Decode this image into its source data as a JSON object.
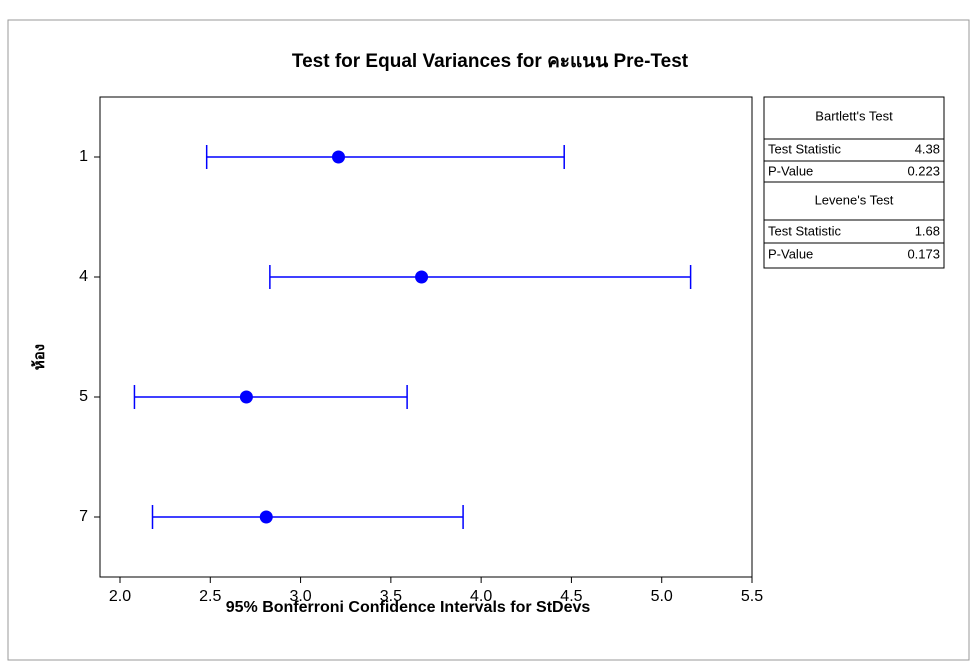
{
  "chart_data": {
    "type": "interval",
    "title": "Test for Equal Variances for คะแนน Pre-Test",
    "x_label": "95% Bonferroni Confidence Intervals for StDevs",
    "y_label": "ห้อง",
    "categories": [
      "1",
      "4",
      "5",
      "7"
    ],
    "values": [
      3.21,
      3.67,
      2.7,
      2.81
    ],
    "lower": [
      2.48,
      2.83,
      2.08,
      2.18
    ],
    "upper": [
      4.46,
      5.16,
      3.59,
      3.9
    ],
    "color": "#0000ff",
    "xlim": [
      2.0,
      5.5
    ],
    "xticks": [
      {
        "value": 2,
        "label": "2.0"
      },
      2.5,
      {
        "value": 3,
        "label": "3.0"
      },
      3.5,
      {
        "value": 4,
        "label": "4.0"
      },
      4.5,
      {
        "value": 5,
        "label": "5.0"
      },
      5.5
    ],
    "tests": [
      {
        "title": "Bartlett's Test",
        "rows": [
          [
            "Test Statistic",
            4.38
          ],
          [
            "P-Value",
            0.223
          ]
        ]
      },
      {
        "title": "Levene's Test",
        "rows": [
          [
            "Test Statistic",
            1.68
          ],
          [
            "P-Value",
            0.173
          ]
        ]
      }
    ]
  }
}
